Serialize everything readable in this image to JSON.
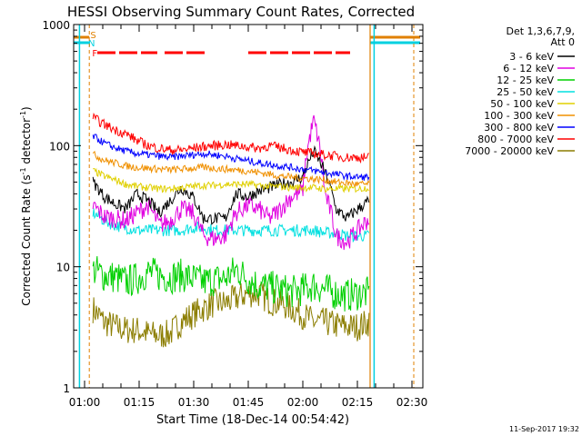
{
  "chart_data": {
    "type": "line",
    "title": "HESSI Observing Summary Count Rates, Corrected",
    "xlabel": "Start Time (18-Dec-14 00:54:42)",
    "ylabel_main": "Corrected Count Rate (s",
    "ylabel_exp1": "-1",
    "ylabel_mid": " detector",
    "ylabel_exp2": "-1",
    "ylabel_end": ")",
    "yscale": "log",
    "ylim": [
      1,
      1000
    ],
    "xlim_minutes_after_0050": [
      7,
      103
    ],
    "x_tick_labels": [
      "01:00",
      "01:15",
      "01:30",
      "01:45",
      "02:00",
      "02:15",
      "02:30"
    ],
    "x_tick_minutes_after_0050": [
      10,
      25,
      40,
      55,
      70,
      85,
      100
    ],
    "y_tick_labels": [
      "1",
      "10",
      "100",
      "1000"
    ],
    "y_tick_values": [
      1,
      10,
      100,
      1000
    ],
    "legend_header": [
      "Det 1,3,6,7,9,",
      "Att 0"
    ],
    "legend_placement": "right",
    "flag_labels": [
      "S",
      "N",
      "F"
    ],
    "series": [
      {
        "name": "3 - 6 keV",
        "color": "#000000",
        "level": [
          50,
          38,
          33,
          30,
          40,
          35,
          28,
          35,
          45,
          38,
          25,
          25,
          25,
          40,
          38,
          42,
          45,
          48,
          50,
          55,
          90,
          60,
          30,
          25,
          30,
          35
        ]
      },
      {
        "name": "6 - 12 keV",
        "color": "#e000e0",
        "level": [
          32,
          26,
          25,
          24,
          28,
          32,
          22,
          24,
          30,
          28,
          18,
          17,
          18,
          28,
          32,
          30,
          25,
          30,
          38,
          42,
          160,
          40,
          18,
          16,
          20,
          25
        ]
      },
      {
        "name": "12 - 25 keV",
        "color": "#00d000",
        "level": [
          9.5,
          8.5,
          8.2,
          7.5,
          8,
          9,
          8.5,
          8.2,
          8.5,
          8,
          7.5,
          7.8,
          8,
          9.5,
          8,
          7,
          6.8,
          6.5,
          6.2,
          6.5,
          7,
          6.5,
          6,
          5.8,
          6,
          6
        ]
      },
      {
        "name": "25 - 50 keV",
        "color": "#00e0e0",
        "level": [
          28,
          24,
          22,
          21,
          20,
          20,
          20,
          20,
          20,
          21,
          21,
          20,
          20,
          20,
          20,
          20,
          20,
          20,
          20,
          20,
          20,
          19,
          19,
          18,
          18,
          18
        ]
      },
      {
        "name": "50 - 100 keV",
        "color": "#e0d000",
        "level": [
          62,
          56,
          52,
          48,
          46,
          45,
          44,
          44,
          45,
          46,
          47,
          47,
          48,
          48,
          48,
          47,
          46,
          46,
          45,
          45,
          45,
          44,
          44,
          44,
          44,
          45
        ]
      },
      {
        "name": "100 - 300 keV",
        "color": "#f09000",
        "level": [
          85,
          76,
          72,
          68,
          66,
          65,
          64,
          63,
          64,
          65,
          66,
          65,
          64,
          63,
          62,
          60,
          58,
          56,
          55,
          54,
          53,
          52,
          50,
          49,
          48,
          48
        ]
      },
      {
        "name": "300 - 800 keV",
        "color": "#0000ff",
        "level": [
          120,
          105,
          96,
          90,
          86,
          84,
          82,
          80,
          82,
          84,
          86,
          84,
          82,
          78,
          75,
          72,
          70,
          68,
          66,
          64,
          62,
          60,
          58,
          56,
          55,
          55
        ]
      },
      {
        "name": "800 - 7000 keV",
        "color": "#ff0000",
        "level": [
          170,
          150,
          135,
          125,
          110,
          100,
          95,
          92,
          92,
          95,
          98,
          100,
          102,
          100,
          98,
          95,
          100,
          96,
          92,
          88,
          86,
          84,
          82,
          80,
          80,
          80
        ]
      },
      {
        "name": "7000 - 20000 keV",
        "color": "#8b7d00",
        "level": [
          4.5,
          3.5,
          3.2,
          3,
          3,
          2.8,
          2.7,
          2.8,
          3.5,
          4,
          4.5,
          5,
          5,
          5.5,
          6,
          6,
          5.2,
          5,
          4.5,
          4,
          3.5,
          3.5,
          3.3,
          3.2,
          3.2,
          3.5
        ]
      }
    ]
  },
  "footer": {
    "timestamp": "11-Sep-2017 19:32"
  }
}
